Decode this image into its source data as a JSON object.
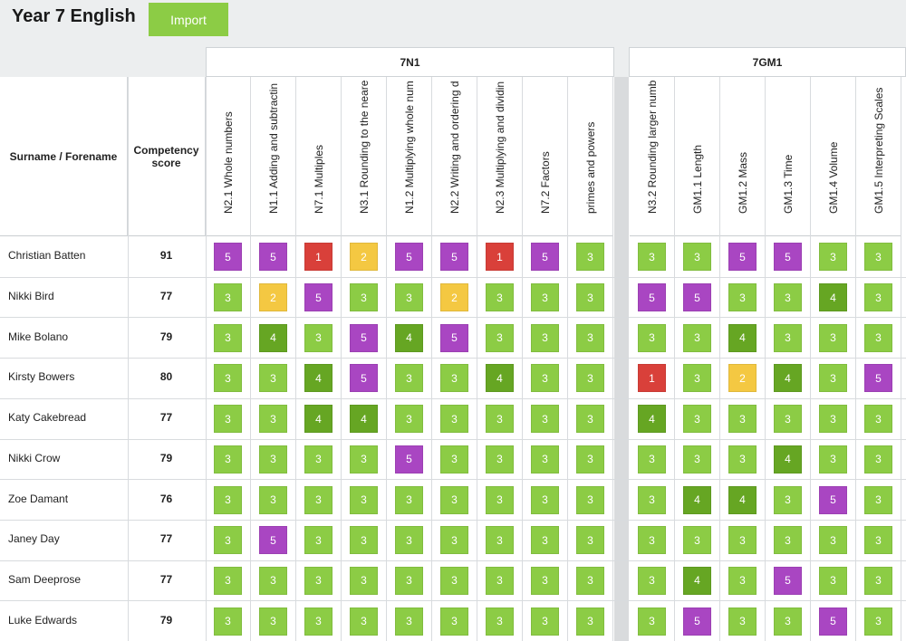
{
  "page": {
    "title": "Year 7 English",
    "import_label": "Import"
  },
  "table": {
    "name_header": "Surname / Forename",
    "score_header": "Competency score",
    "groups": [
      {
        "name": "7N1",
        "columns": [
          "N2.1 Whole numbers",
          "N1.1 Adding and subtractin",
          "N7.1 Multiples",
          "N3.1 Rounding to the neare",
          "N1.2 Multiplying whole num",
          "N2.2 Writing and ordering d",
          "N2.3 Multiplying and dividin",
          "N7.2 Factors",
          "primes and powers"
        ]
      },
      {
        "name": "7GM1",
        "columns": [
          "N3.2 Rounding larger numb",
          "GM1.1 Length",
          "GM1.2 Mass",
          "GM1.3 Time",
          "GM1.4 Volume",
          "GM1.5 Interpreting Scales"
        ]
      }
    ],
    "rows": [
      {
        "name": "Christian Batten",
        "score": "91",
        "values": [
          5,
          5,
          1,
          2,
          5,
          5,
          1,
          5,
          3,
          3,
          3,
          5,
          5,
          3,
          3
        ]
      },
      {
        "name": "Nikki Bird",
        "score": "77",
        "values": [
          3,
          2,
          5,
          3,
          3,
          2,
          3,
          3,
          3,
          5,
          5,
          3,
          3,
          4,
          3
        ]
      },
      {
        "name": "Mike Bolano",
        "score": "79",
        "values": [
          3,
          4,
          3,
          5,
          4,
          5,
          3,
          3,
          3,
          3,
          3,
          4,
          3,
          3,
          3
        ]
      },
      {
        "name": "Kirsty Bowers",
        "score": "80",
        "values": [
          3,
          3,
          4,
          5,
          3,
          3,
          4,
          3,
          3,
          1,
          3,
          2,
          4,
          3,
          5
        ]
      },
      {
        "name": "Katy Cakebread",
        "score": "77",
        "values": [
          3,
          3,
          4,
          4,
          3,
          3,
          3,
          3,
          3,
          4,
          3,
          3,
          3,
          3,
          3
        ]
      },
      {
        "name": "Nikki Crow",
        "score": "79",
        "values": [
          3,
          3,
          3,
          3,
          5,
          3,
          3,
          3,
          3,
          3,
          3,
          3,
          4,
          3,
          3
        ]
      },
      {
        "name": "Zoe Damant",
        "score": "76",
        "values": [
          3,
          3,
          3,
          3,
          3,
          3,
          3,
          3,
          3,
          3,
          4,
          4,
          3,
          5,
          3
        ]
      },
      {
        "name": "Janey Day",
        "score": "77",
        "values": [
          3,
          5,
          3,
          3,
          3,
          3,
          3,
          3,
          3,
          3,
          3,
          3,
          3,
          3,
          3
        ]
      },
      {
        "name": "Sam Deeprose",
        "score": "77",
        "values": [
          3,
          3,
          3,
          3,
          3,
          3,
          3,
          3,
          3,
          3,
          4,
          3,
          5,
          3,
          3
        ]
      },
      {
        "name": "Luke Edwards",
        "score": "79",
        "values": [
          3,
          3,
          3,
          3,
          3,
          3,
          3,
          3,
          3,
          3,
          5,
          3,
          3,
          5,
          3
        ]
      }
    ]
  },
  "colors": {
    "1": "#d9403a",
    "2": "#f4c842",
    "3": "#8ccc45",
    "4": "#66a623",
    "5": "#a946c2"
  }
}
